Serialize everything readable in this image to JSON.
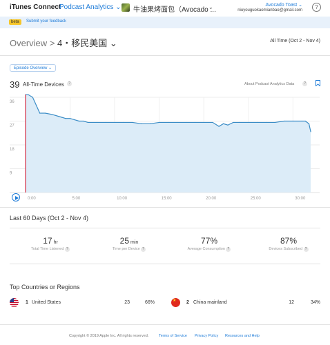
{
  "header": {
    "brand": "iTunes Connect",
    "app_menu": "Podcast Analytics ⌄",
    "podcast_name": "牛油果烤面包（Avocado ...",
    "user_name": "Avocado Toast ⌄",
    "user_email": "niuyouguokaomianbao@gmail.com",
    "help": "?"
  },
  "beta": {
    "badge": "beta",
    "link": "Submit your feedback"
  },
  "breadcrumb": {
    "root": "Overview",
    "separator": ">",
    "current": "4・移民美国",
    "chevron": "⌄"
  },
  "date_range": "All Time (Oct 2 - Nov 4)",
  "episode_select": "Episode Overview ⌄",
  "devices": {
    "count": "39",
    "label": "All-Time Devices",
    "about": "About Podcast Analytics Data"
  },
  "chart_data": {
    "type": "area",
    "title": "",
    "xlabel": "",
    "ylabel": "",
    "x_ticks": [
      "0:00",
      "5:00",
      "10:00",
      "15:00",
      "20:00",
      "25:00",
      "30:00"
    ],
    "y_ticks": [
      "36",
      "27",
      "18",
      "9"
    ],
    "ylim": [
      0,
      36
    ],
    "xlim": [
      0,
      33
    ],
    "grid": true,
    "series": [
      {
        "x": [
          0,
          0.3,
          0.8,
          1.2,
          1.6,
          2.2,
          3.0,
          4.0,
          4.5,
          5.0,
          5.5,
          6.0,
          6.5,
          7.0,
          8.0,
          9.0,
          10.0,
          11.0,
          12.0,
          13.0,
          14.0,
          15.0,
          16.0,
          17.0,
          18.0,
          19.0,
          20.0,
          21.0,
          21.7,
          22.2,
          22.7,
          23.3,
          24.0,
          25.0,
          26.0,
          27.0,
          28.0,
          29.0,
          30.0,
          31.0,
          31.4,
          31.8,
          32.0
        ],
        "values": [
          37,
          37,
          36,
          33,
          30,
          30,
          29.5,
          28.5,
          28,
          28,
          27.5,
          27,
          27,
          26.5,
          26.5,
          26.5,
          26.5,
          26.5,
          26.5,
          26,
          26,
          26.5,
          26.5,
          26.5,
          26.5,
          26.5,
          26.5,
          26.5,
          25,
          26,
          25.5,
          26.5,
          26.5,
          26.5,
          26.5,
          26.5,
          26.5,
          27,
          27,
          27,
          27,
          26,
          23
        ]
      }
    ],
    "colors": {
      "line": "#3a8cc6",
      "fill": "#dcecf8",
      "marker": "#d0021b"
    }
  },
  "summary": {
    "title": "Last 60 Days (Oct 2 - Nov 4)",
    "stats": [
      {
        "value": "17",
        "unit": "hr",
        "label": "Total Time Listened"
      },
      {
        "value": "25",
        "unit": "min",
        "label": "Time per Device"
      },
      {
        "value": "77%",
        "unit": "",
        "label": "Average Consumption"
      },
      {
        "value": "87%",
        "unit": "",
        "label": "Devices Subscribed"
      }
    ]
  },
  "countries": {
    "title": "Top Countries or Regions",
    "rows": [
      {
        "rank": "1",
        "name": "United States",
        "count": "23",
        "pct": "66%",
        "flag": "us-flag-icon"
      },
      {
        "rank": "2",
        "name": "China mainland",
        "count": "12",
        "pct": "34%",
        "flag": "cn-flag-icon"
      }
    ]
  },
  "footer": {
    "copyright": "Copyright © 2019 Apple Inc. All rights reserved.",
    "links": [
      "Terms of Service",
      "Privacy Policy",
      "Resources and Help"
    ]
  }
}
